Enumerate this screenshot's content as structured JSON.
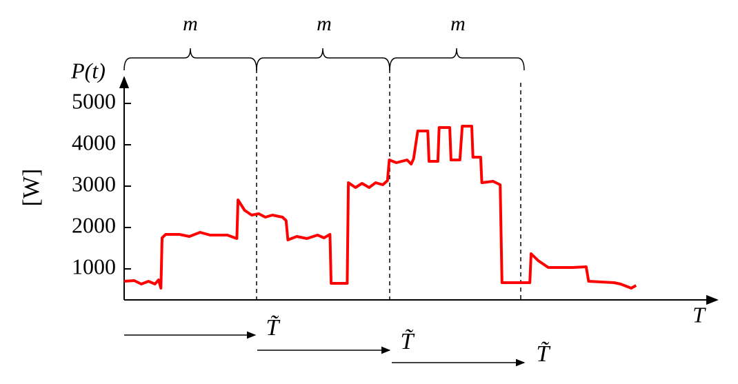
{
  "chart_data": {
    "type": "line",
    "y_title": "P(t)",
    "y_unit": "[W]",
    "x_title": "T",
    "window_labels": [
      "m",
      "m",
      "m"
    ],
    "shift_labels": [
      "T̃",
      "T̃",
      "T̃"
    ],
    "xlim": [
      0,
      100
    ],
    "ylim": [
      250,
      5600
    ],
    "yticks": [
      1000,
      2000,
      3000,
      4000,
      5000
    ],
    "x": [
      0,
      1.7,
      2.9,
      4.1,
      5.2,
      5.8,
      6.2,
      6.4,
      7.0,
      9.3,
      11.0,
      12.8,
      14.5,
      17.4,
      19.0,
      19.2,
      20.3,
      21.5,
      22.7,
      23.8,
      25.0,
      26.7,
      27.3,
      27.6,
      29.1,
      30.8,
      32.6,
      33.7,
      34.7,
      34.9,
      37.6,
      37.8,
      39.0,
      40.1,
      41.3,
      42.4,
      43.6,
      44.4,
      44.7,
      45.9,
      47.7,
      48.4,
      48.8,
      49.5,
      51.2,
      51.4,
      52.9,
      53.1,
      54.9,
      55.1,
      56.6,
      57.0,
      58.6,
      58.8,
      60.1,
      60.3,
      62.2,
      63.4,
      63.7,
      68.4,
      68.6,
      69.8,
      71.5,
      75.6,
      77.9,
      78.3,
      82.6,
      83.7,
      85.5,
      86.3
    ],
    "series": [
      {
        "name": "P(t)",
        "color": "#ff0000",
        "values": [
          700,
          717,
          633,
          700,
          633,
          733,
          533,
          1750,
          1833,
          1833,
          1783,
          1883,
          1817,
          1817,
          1733,
          2667,
          2417,
          2300,
          2333,
          2250,
          2300,
          2250,
          2167,
          1700,
          1783,
          1733,
          1817,
          1750,
          1833,
          650,
          650,
          3083,
          2967,
          3067,
          2967,
          3083,
          3033,
          3133,
          3633,
          3567,
          3633,
          3533,
          3667,
          4333,
          4333,
          3600,
          3600,
          4417,
          4417,
          3633,
          3633,
          4450,
          4450,
          3700,
          3700,
          3083,
          3117,
          3033,
          667,
          667,
          1367,
          1200,
          1033,
          1033,
          1050,
          700,
          667,
          633,
          533,
          600
        ]
      }
    ]
  }
}
